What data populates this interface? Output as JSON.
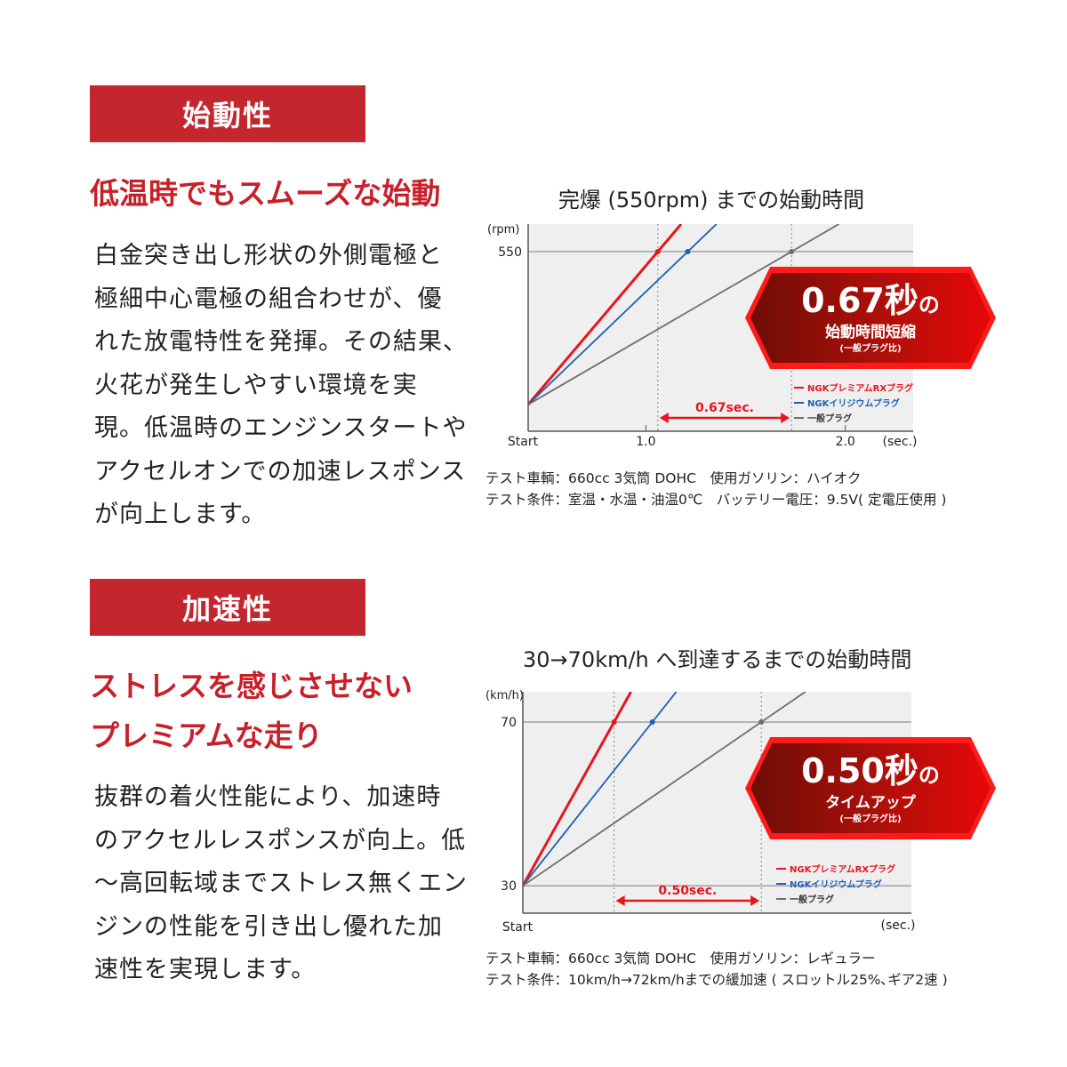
{
  "sections": [
    {
      "bar": "始動性",
      "heading": [
        "低温時でもスムーズな始動"
      ],
      "body": [
        "白金突き出し形状の外側電極と",
        "極細中心電極の組合わせが、優",
        "れた放電特性を発揮。その結果、",
        "火花が発生しやすい環境を実",
        "現。低温時のエンジンスタートや",
        "アクセルオンでの加速レスポンス",
        "が向上します。"
      ]
    },
    {
      "bar": "加速性",
      "heading": [
        "ストレスを感じさせない",
        "プレミアムな走り"
      ],
      "body": [
        "抜群の着火性能により、加速時",
        "のアクセルレスポンスが向上。低",
        "～高回転域までストレス無くエン",
        "ジンの性能を引き出し優れた加",
        "速性を実現します。"
      ]
    }
  ],
  "colors": {
    "accent": "#c4262e",
    "red_series": "#e8141e",
    "blue_series": "#1f5fb4",
    "gray_series": "#6e6e6e",
    "plot_bg": "#efefef"
  },
  "chart_data": [
    {
      "type": "line",
      "title": "完爆 (550rpm) までの始動時間",
      "ylabel": "(rpm)",
      "xlabel": "(sec.)",
      "x_tick_labels": [
        "Start",
        "1.0",
        "2.0"
      ],
      "x_ticks": [
        1.0,
        2.0
      ],
      "y_tick_labels": [
        "550"
      ],
      "y_ticks": [
        550
      ],
      "xlim": [
        0.41,
        2.34
      ],
      "ylim": [
        -96,
        649
      ],
      "grid": false,
      "legend": "bottom-right",
      "series": [
        {
          "name": "NGKプレミアムRXプラグ",
          "color": "#e8141e",
          "x": [
            0.41,
            1.06
          ],
          "y": [
            0,
            550
          ]
        },
        {
          "name": "NGKイリジウムプラグ",
          "color": "#1f5fb4",
          "x": [
            0.41,
            1.21
          ],
          "y": [
            0,
            550
          ]
        },
        {
          "name": "一般プラグ",
          "color": "#6e6e6e",
          "x": [
            0.41,
            1.73
          ],
          "y": [
            0,
            550
          ]
        }
      ],
      "annotation": "0.67sec.",
      "badge": {
        "big": "0.67秒",
        "small_no": "の",
        "line2": "始動時間短縮",
        "line3": "(一般プラグ比)"
      },
      "notes": [
        "テスト車輌：660cc 3気筒 DOHC　使用ガソリン：ハイオク",
        "テスト条件：室温・水温・油温0℃　バッテリー電圧：9.5V( 定電圧使用 )"
      ]
    },
    {
      "type": "line",
      "title": "30→70km/h へ到達するまでの始動時間",
      "ylabel": "(km/h)",
      "xlabel": "(sec.)",
      "x_tick_labels": [
        "Start"
      ],
      "x_ticks": [],
      "y_tick_labels": [
        "70",
        "30"
      ],
      "y_ticks": [
        70,
        30
      ],
      "xlim": [
        0,
        1.32
      ],
      "ylim": [
        23.3,
        77.4
      ],
      "grid": false,
      "legend": "bottom-right",
      "series": [
        {
          "name": "NGKプレミアムRXプラグ",
          "color": "#e8141e",
          "x": [
            0,
            0.31
          ],
          "y": [
            30,
            70
          ]
        },
        {
          "name": "NGKイリジウムプラグ",
          "color": "#1f5fb4",
          "x": [
            0,
            0.44
          ],
          "y": [
            30,
            70
          ]
        },
        {
          "name": "一般プラグ",
          "color": "#6e6e6e",
          "x": [
            0,
            0.81
          ],
          "y": [
            30,
            70
          ]
        }
      ],
      "annotation": "0.50sec.",
      "badge": {
        "big": "0.50秒",
        "small_no": "の",
        "line2": "タイムアップ",
        "line3": "(一般プラグ比)"
      },
      "notes": [
        "テスト車輌：660cc 3気筒 DOHC　使用ガソリン：レギュラー",
        "テスト条件：10km/h→72km/hまでの緩加速 ( スロットル25%､ギア2速 )"
      ]
    }
  ]
}
